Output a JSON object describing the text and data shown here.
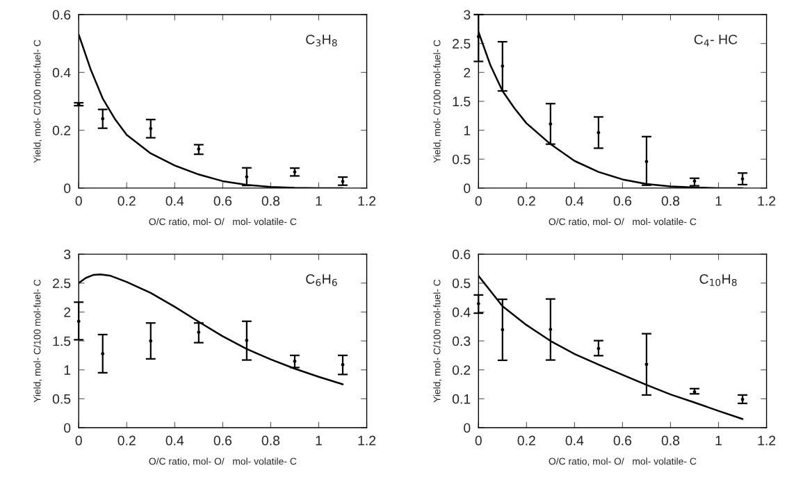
{
  "chart_data": [
    {
      "type": "scatter",
      "xlabel": "O/C ratio, mol- O/   mol- volatile- C",
      "ylabel": "Yield, mol- C/100 mol-fuel- C",
      "annotations": [
        "C$_{3}$H$_{8}$"
      ],
      "xlim": [
        0,
        1.2
      ],
      "xticks": [
        0,
        0.2,
        0.4,
        0.6,
        0.8,
        1,
        1.2
      ],
      "ylim": [
        0,
        0.6
      ],
      "yticks": [
        0,
        0.2,
        0.4,
        0.6
      ],
      "line_style": "solid",
      "series": [
        {
          "marker": "circle",
          "color": "#000000",
          "x": [
            0,
            0.1,
            0.3,
            0.5,
            0.7,
            0.9,
            1.1
          ],
          "values": [
            0.29,
            0.24,
            0.206,
            0.135,
            0.039,
            0.056,
            0.023
          ],
          "errors": [
            [
              0.285,
              0.295
            ],
            [
              0.207,
              0.272
            ],
            [
              0.174,
              0.237
            ],
            [
              0.117,
              0.15
            ],
            [
              0.009,
              0.07
            ],
            [
              0.042,
              0.069
            ],
            [
              0.01,
              0.038
            ]
          ]
        },
        {
          "type": "line",
          "color": "#000000",
          "x": [
            0,
            0.05,
            0.1,
            0.15,
            0.2,
            0.3,
            0.4,
            0.5,
            0.6,
            0.7,
            0.8,
            0.9,
            1.0,
            1.1
          ],
          "values": [
            0.531,
            0.41,
            0.31,
            0.24,
            0.184,
            0.12,
            0.078,
            0.047,
            0.024,
            0.011,
            0.004,
            0.001,
            0,
            0
          ]
        }
      ]
    },
    {
      "type": "scatter",
      "xlabel": "O/C ratio, mol- O/   mol- volatile- C",
      "ylabel": "Yield, mol- C/100 mol-fuel- C",
      "annotations": [
        "C$_{4}$- HC"
      ],
      "xlim": [
        0,
        1.2
      ],
      "xticks": [
        0,
        0.2,
        0.4,
        0.6,
        0.8,
        1,
        1.2
      ],
      "ylim": [
        0,
        3
      ],
      "yticks": [
        0,
        0.5,
        1,
        1.5,
        2,
        2.5,
        3
      ],
      "line_style": "solid",
      "series": [
        {
          "marker": "circle",
          "color": "#000000",
          "x": [
            0,
            0.1,
            0.3,
            0.5,
            0.7,
            0.9,
            1.1
          ],
          "values": [
            2.62,
            2.11,
            1.11,
            0.96,
            0.46,
            0.12,
            0.16
          ],
          "errors": [
            [
              2.19,
              3.0
            ],
            [
              1.68,
              2.53
            ],
            [
              0.76,
              1.46
            ],
            [
              0.69,
              1.23
            ],
            [
              0.05,
              0.89
            ],
            [
              0.04,
              0.17
            ],
            [
              0.06,
              0.26
            ]
          ]
        },
        {
          "type": "line",
          "color": "#000000",
          "x": [
            0,
            0.05,
            0.1,
            0.15,
            0.2,
            0.3,
            0.4,
            0.5,
            0.6,
            0.7,
            0.8,
            0.9,
            1.0,
            1.1
          ],
          "values": [
            2.7,
            2.12,
            1.68,
            1.38,
            1.12,
            0.76,
            0.47,
            0.28,
            0.15,
            0.07,
            0.03,
            0.01,
            0,
            0
          ]
        }
      ]
    },
    {
      "type": "scatter",
      "xlabel": "O/C ratio, mol- O/   mol- volatile- C",
      "ylabel": "Yield, mol- C/100 mol-fuel- C",
      "annotations": [
        "C$_{6}$H$_{6}$"
      ],
      "xlim": [
        0,
        1.2
      ],
      "xticks": [
        0,
        0.2,
        0.4,
        0.6,
        0.8,
        1,
        1.2
      ],
      "ylim": [
        0,
        3
      ],
      "yticks": [
        0,
        0.5,
        1,
        1.5,
        2,
        2.5,
        3
      ],
      "line_style": "solid",
      "series": [
        {
          "marker": "circle",
          "color": "#000000",
          "x": [
            0,
            0.1,
            0.3,
            0.5,
            0.7,
            0.9,
            1.1
          ],
          "values": [
            1.84,
            1.28,
            1.5,
            1.65,
            1.51,
            1.15,
            1.09
          ],
          "errors": [
            [
              1.52,
              2.17
            ],
            [
              0.95,
              1.61
            ],
            [
              1.19,
              1.81
            ],
            [
              1.47,
              1.81
            ],
            [
              1.17,
              1.84
            ],
            [
              1.04,
              1.25
            ],
            [
              0.92,
              1.25
            ]
          ]
        },
        {
          "type": "line",
          "color": "#000000",
          "x": [
            0,
            0.03,
            0.06,
            0.09,
            0.13,
            0.2,
            0.3,
            0.4,
            0.5,
            0.6,
            0.7,
            0.8,
            0.9,
            1.0,
            1.1
          ],
          "values": [
            2.5,
            2.59,
            2.64,
            2.65,
            2.63,
            2.52,
            2.33,
            2.09,
            1.83,
            1.58,
            1.36,
            1.18,
            1.02,
            0.88,
            0.75
          ]
        }
      ]
    },
    {
      "type": "scatter",
      "xlabel": "O/C ratio, mol- O/   mol- volatile- C",
      "ylabel": "Yield, mol- C/100 mol-fuel- C",
      "annotations": [
        "C$_{10}$H$_{8}$"
      ],
      "xlim": [
        0,
        1.2
      ],
      "xticks": [
        0,
        0.2,
        0.4,
        0.6,
        0.8,
        1,
        1.2
      ],
      "ylim": [
        0,
        0.6
      ],
      "yticks": [
        0,
        0.1,
        0.2,
        0.3,
        0.4,
        0.5,
        0.6
      ],
      "line_style": "solid",
      "series": [
        {
          "marker": "circle",
          "color": "#000000",
          "x": [
            0,
            0.1,
            0.3,
            0.5,
            0.7,
            0.9,
            1.1
          ],
          "values": [
            0.429,
            0.339,
            0.34,
            0.274,
            0.219,
            0.124,
            0.098
          ],
          "errors": [
            [
              0.396,
              0.459
            ],
            [
              0.233,
              0.444
            ],
            [
              0.234,
              0.445
            ],
            [
              0.249,
              0.301
            ],
            [
              0.113,
              0.325
            ],
            [
              0.117,
              0.135
            ],
            [
              0.084,
              0.113
            ]
          ]
        },
        {
          "type": "line",
          "color": "#000000",
          "x": [
            0,
            0.1,
            0.2,
            0.3,
            0.4,
            0.5,
            0.6,
            0.7,
            0.8,
            0.9,
            1.0,
            1.1
          ],
          "values": [
            0.525,
            0.42,
            0.355,
            0.3,
            0.255,
            0.218,
            0.183,
            0.148,
            0.115,
            0.087,
            0.058,
            0.03
          ]
        }
      ]
    }
  ]
}
